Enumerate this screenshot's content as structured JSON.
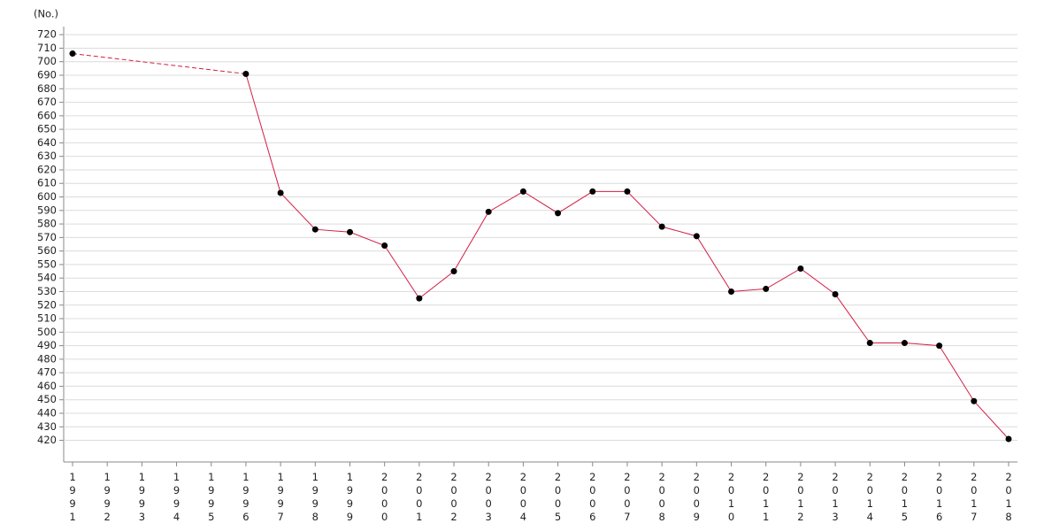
{
  "chart_data": {
    "type": "line",
    "y_label": "(No.)",
    "categories": [
      "1991",
      "1992",
      "1993",
      "1994",
      "1995",
      "1996",
      "1997",
      "1998",
      "1999",
      "2000",
      "2001",
      "2002",
      "2003",
      "2004",
      "2005",
      "2006",
      "2007",
      "2008",
      "2009",
      "2010",
      "2011",
      "2012",
      "2013",
      "2014",
      "2015",
      "2016",
      "2017",
      "2018"
    ],
    "values": [
      706,
      null,
      null,
      null,
      null,
      691,
      603,
      576,
      574,
      564,
      525,
      545,
      589,
      604,
      588,
      604,
      604,
      578,
      571,
      530,
      532,
      547,
      528,
      492,
      492,
      490,
      449,
      421
    ],
    "color": "#d21f46",
    "marker_color": "#000000",
    "ylim": [
      404,
      726
    ],
    "yticks": [
      420,
      430,
      440,
      450,
      460,
      470,
      480,
      490,
      500,
      510,
      520,
      530,
      540,
      550,
      560,
      570,
      580,
      590,
      600,
      610,
      620,
      630,
      640,
      650,
      660,
      670,
      680,
      690,
      700,
      710,
      720
    ],
    "grid": true
  }
}
